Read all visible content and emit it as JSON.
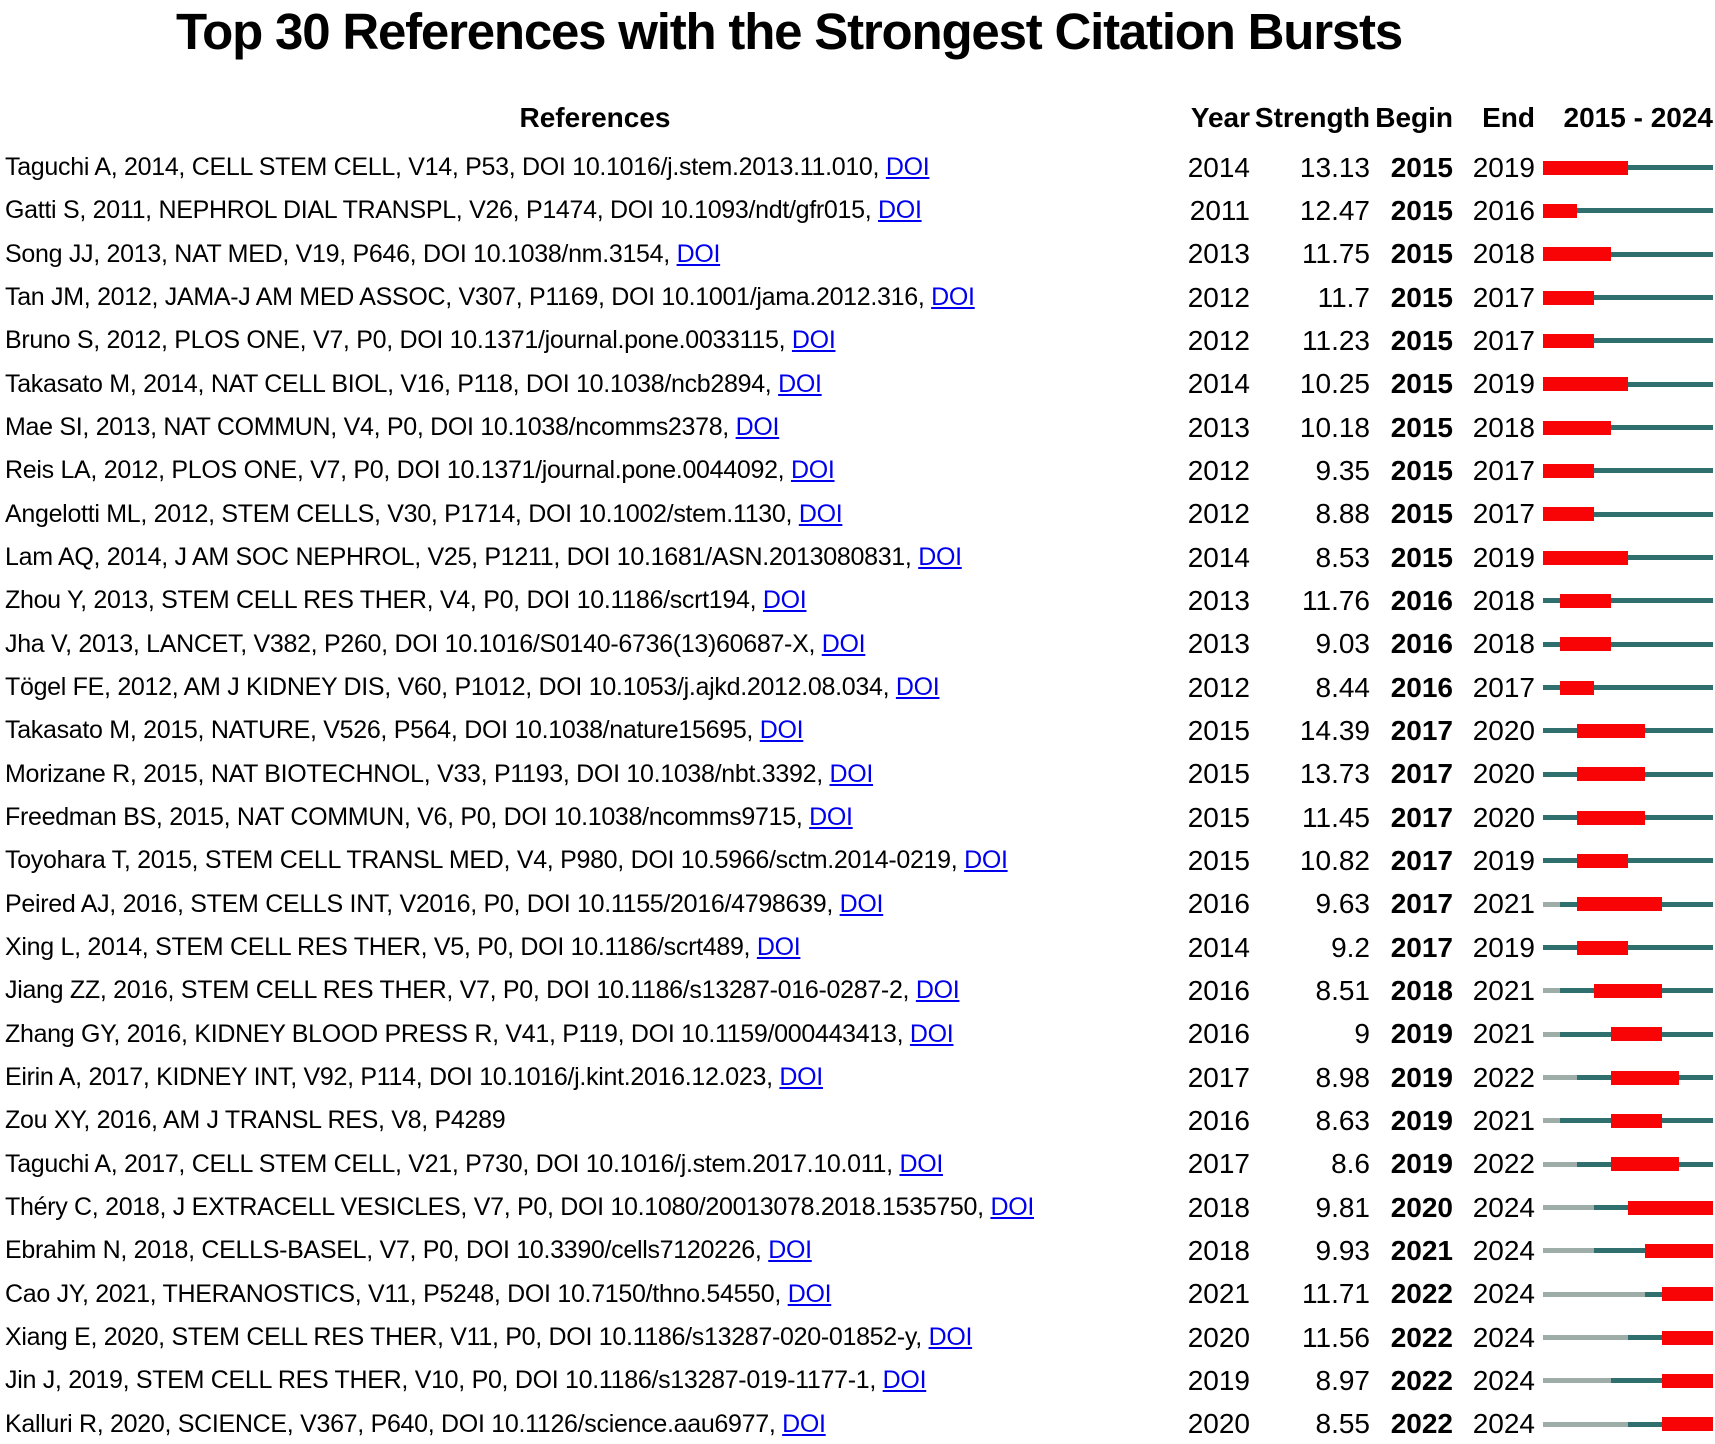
{
  "chart_data": {
    "type": "table",
    "title": "Top 30 References with the Strongest Citation Bursts",
    "period": {
      "start": 2015,
      "end": 2024
    },
    "columns": {
      "references": "References",
      "year": "Year",
      "strength": "Strength",
      "begin": "Begin",
      "end": "End",
      "period": "2015 - 2024"
    },
    "colors": {
      "burst": "#F80306",
      "timeline": "#2F6F6E",
      "pre_publication": "#9FADA8",
      "doi_link": "#0000EE"
    },
    "rows": [
      {
        "text": "Taguchi A, 2014, CELL STEM CELL, V14, P53, DOI 10.1016/j.stem.2013.11.010,",
        "doi": "DOI",
        "year": 2014,
        "strength": "13.13",
        "begin": 2015,
        "end": 2019
      },
      {
        "text": "Gatti S, 2011, NEPHROL DIAL TRANSPL, V26, P1474, DOI 10.1093/ndt/gfr015,",
        "doi": "DOI",
        "year": 2011,
        "strength": "12.47",
        "begin": 2015,
        "end": 2016
      },
      {
        "text": "Song JJ, 2013, NAT MED, V19, P646, DOI 10.1038/nm.3154,",
        "doi": "DOI",
        "year": 2013,
        "strength": "11.75",
        "begin": 2015,
        "end": 2018
      },
      {
        "text": "Tan JM, 2012, JAMA-J AM MED ASSOC, V307, P1169, DOI 10.1001/jama.2012.316,",
        "doi": "DOI",
        "year": 2012,
        "strength": "11.7",
        "begin": 2015,
        "end": 2017
      },
      {
        "text": "Bruno S, 2012, PLOS ONE, V7, P0, DOI 10.1371/journal.pone.0033115,",
        "doi": "DOI",
        "year": 2012,
        "strength": "11.23",
        "begin": 2015,
        "end": 2017
      },
      {
        "text": "Takasato M, 2014, NAT CELL BIOL, V16, P118, DOI 10.1038/ncb2894,",
        "doi": "DOI",
        "year": 2014,
        "strength": "10.25",
        "begin": 2015,
        "end": 2019
      },
      {
        "text": "Mae SI, 2013, NAT COMMUN, V4, P0, DOI 10.1038/ncomms2378,",
        "doi": "DOI",
        "year": 2013,
        "strength": "10.18",
        "begin": 2015,
        "end": 2018
      },
      {
        "text": "Reis LA, 2012, PLOS ONE, V7, P0, DOI 10.1371/journal.pone.0044092,",
        "doi": "DOI",
        "year": 2012,
        "strength": "9.35",
        "begin": 2015,
        "end": 2017
      },
      {
        "text": "Angelotti ML, 2012, STEM CELLS, V30, P1714, DOI 10.1002/stem.1130,",
        "doi": "DOI",
        "year": 2012,
        "strength": "8.88",
        "begin": 2015,
        "end": 2017
      },
      {
        "text": "Lam AQ, 2014, J AM SOC NEPHROL, V25, P1211, DOI 10.1681/ASN.2013080831,",
        "doi": "DOI",
        "year": 2014,
        "strength": "8.53",
        "begin": 2015,
        "end": 2019
      },
      {
        "text": "Zhou Y, 2013, STEM CELL RES THER, V4, P0, DOI 10.1186/scrt194,",
        "doi": "DOI",
        "year": 2013,
        "strength": "11.76",
        "begin": 2016,
        "end": 2018
      },
      {
        "text": "Jha V, 2013, LANCET, V382, P260, DOI 10.1016/S0140-6736(13)60687-X,",
        "doi": "DOI",
        "year": 2013,
        "strength": "9.03",
        "begin": 2016,
        "end": 2018
      },
      {
        "text": "Tögel FE, 2012, AM J KIDNEY DIS, V60, P1012, DOI 10.1053/j.ajkd.2012.08.034,",
        "doi": "DOI",
        "year": 2012,
        "strength": "8.44",
        "begin": 2016,
        "end": 2017
      },
      {
        "text": "Takasato M, 2015, NATURE, V526, P564, DOI 10.1038/nature15695,",
        "doi": "DOI",
        "year": 2015,
        "strength": "14.39",
        "begin": 2017,
        "end": 2020
      },
      {
        "text": "Morizane R, 2015, NAT BIOTECHNOL, V33, P1193, DOI 10.1038/nbt.3392,",
        "doi": "DOI",
        "year": 2015,
        "strength": "13.73",
        "begin": 2017,
        "end": 2020
      },
      {
        "text": "Freedman BS, 2015, NAT COMMUN, V6, P0, DOI 10.1038/ncomms9715,",
        "doi": "DOI",
        "year": 2015,
        "strength": "11.45",
        "begin": 2017,
        "end": 2020
      },
      {
        "text": "Toyohara T, 2015, STEM CELL TRANSL MED, V4, P980, DOI 10.5966/sctm.2014-0219,",
        "doi": "DOI",
        "year": 2015,
        "strength": "10.82",
        "begin": 2017,
        "end": 2019
      },
      {
        "text": "Peired AJ, 2016, STEM CELLS INT, V2016, P0, DOI 10.1155/2016/4798639,",
        "doi": "DOI",
        "year": 2016,
        "strength": "9.63",
        "begin": 2017,
        "end": 2021
      },
      {
        "text": "Xing L, 2014, STEM CELL RES THER, V5, P0, DOI 10.1186/scrt489,",
        "doi": "DOI",
        "year": 2014,
        "strength": "9.2",
        "begin": 2017,
        "end": 2019
      },
      {
        "text": "Jiang ZZ, 2016, STEM CELL RES THER, V7, P0, DOI 10.1186/s13287-016-0287-2,",
        "doi": "DOI",
        "year": 2016,
        "strength": "8.51",
        "begin": 2018,
        "end": 2021
      },
      {
        "text": "Zhang GY, 2016, KIDNEY BLOOD PRESS R, V41, P119, DOI 10.1159/000443413,",
        "doi": "DOI",
        "year": 2016,
        "strength": "9",
        "begin": 2019,
        "end": 2021
      },
      {
        "text": "Eirin A, 2017, KIDNEY INT, V92, P114, DOI 10.1016/j.kint.2016.12.023,",
        "doi": "DOI",
        "year": 2017,
        "strength": "8.98",
        "begin": 2019,
        "end": 2022
      },
      {
        "text": "Zou XY, 2016, AM J TRANSL RES, V8, P4289",
        "doi": "",
        "year": 2016,
        "strength": "8.63",
        "begin": 2019,
        "end": 2021
      },
      {
        "text": "Taguchi A, 2017, CELL STEM CELL, V21, P730, DOI 10.1016/j.stem.2017.10.011,",
        "doi": "DOI",
        "year": 2017,
        "strength": "8.6",
        "begin": 2019,
        "end": 2022
      },
      {
        "text": "Théry C, 2018, J EXTRACELL VESICLES, V7, P0, DOI 10.1080/20013078.2018.1535750,",
        "doi": "DOI",
        "year": 2018,
        "strength": "9.81",
        "begin": 2020,
        "end": 2024
      },
      {
        "text": "Ebrahim N, 2018, CELLS-BASEL, V7, P0, DOI 10.3390/cells7120226,",
        "doi": "DOI",
        "year": 2018,
        "strength": "9.93",
        "begin": 2021,
        "end": 2024
      },
      {
        "text": "Cao JY, 2021, THERANOSTICS, V11, P5248, DOI 10.7150/thno.54550,",
        "doi": "DOI",
        "year": 2021,
        "strength": "11.71",
        "begin": 2022,
        "end": 2024
      },
      {
        "text": "Xiang E, 2020, STEM CELL RES THER, V11, P0, DOI 10.1186/s13287-020-01852-y,",
        "doi": "DOI",
        "year": 2020,
        "strength": "11.56",
        "begin": 2022,
        "end": 2024
      },
      {
        "text": "Jin J, 2019, STEM CELL RES THER, V10, P0, DOI 10.1186/s13287-019-1177-1,",
        "doi": "DOI",
        "year": 2019,
        "strength": "8.97",
        "begin": 2022,
        "end": 2024
      },
      {
        "text": "Kalluri R, 2020, SCIENCE, V367, P640, DOI 10.1126/science.aau6977,",
        "doi": "DOI",
        "year": 2020,
        "strength": "8.55",
        "begin": 2022,
        "end": 2024
      }
    ]
  }
}
